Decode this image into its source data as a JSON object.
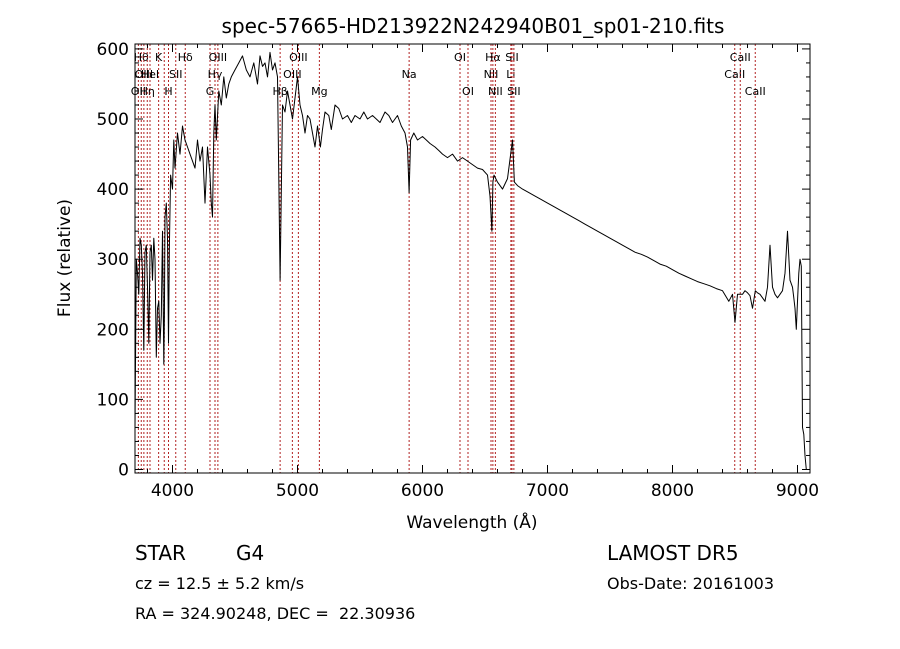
{
  "chart_data": {
    "type": "line",
    "title": "spec-57665-HD213922N242940B01_sp01-210.fits",
    "xlabel": "Wavelength (Å)",
    "ylabel": "Flux (relative)",
    "xlim": [
      3700,
      9100
    ],
    "ylim": [
      -5,
      607
    ],
    "x_ticks": [
      4000,
      5000,
      6000,
      7000,
      8000,
      9000
    ],
    "y_ticks": [
      0,
      100,
      200,
      300,
      400,
      500,
      600
    ],
    "grid": false,
    "legend": "none",
    "line_color": "#000000",
    "marker_color": "#b22222",
    "series": [
      {
        "x": [
          3700,
          3710,
          3720,
          3730,
          3740,
          3750,
          3760,
          3770,
          3780,
          3790,
          3800,
          3810,
          3820,
          3830,
          3840,
          3850,
          3860,
          3870,
          3880,
          3890,
          3900,
          3910,
          3920,
          3930,
          3935,
          3940,
          3950,
          3960,
          3968,
          3975,
          3985,
          4000,
          4010,
          4020,
          4040,
          4060,
          4080,
          4100,
          4120,
          4140,
          4160,
          4180,
          4200,
          4220,
          4240,
          4260,
          4280,
          4300,
          4310,
          4320,
          4330,
          4340,
          4350,
          4370,
          4390,
          4410,
          4430,
          4450,
          4470,
          4500,
          4530,
          4560,
          4590,
          4620,
          4650,
          4680,
          4700,
          4720,
          4740,
          4760,
          4780,
          4800,
          4820,
          4840,
          4861,
          4880,
          4900,
          4920,
          4940,
          4960,
          4980,
          5000,
          5020,
          5040,
          5060,
          5080,
          5100,
          5120,
          5140,
          5160,
          5172,
          5183,
          5200,
          5220,
          5250,
          5270,
          5300,
          5330,
          5360,
          5400,
          5430,
          5460,
          5500,
          5530,
          5560,
          5600,
          5630,
          5660,
          5700,
          5730,
          5760,
          5800,
          5830,
          5860,
          5880,
          5893,
          5905,
          5930,
          5960,
          6000,
          6030,
          6060,
          6100,
          6130,
          6160,
          6200,
          6240,
          6280,
          6320,
          6360,
          6400,
          6440,
          6480,
          6520,
          6540,
          6555,
          6563,
          6572,
          6600,
          6640,
          6680,
          6720,
          6735,
          6760,
          6800,
          6850,
          6900,
          6950,
          7000,
          7050,
          7100,
          7150,
          7200,
          7250,
          7300,
          7350,
          7400,
          7450,
          7500,
          7550,
          7600,
          7650,
          7700,
          7750,
          7800,
          7850,
          7900,
          7950,
          8000,
          8050,
          8100,
          8150,
          8200,
          8250,
          8300,
          8350,
          8400,
          8450,
          8480,
          8500,
          8520,
          8542,
          8560,
          8580,
          8600,
          8620,
          8640,
          8662,
          8680,
          8700,
          8720,
          8740,
          8760,
          8780,
          8800,
          8820,
          8840,
          8860,
          8880,
          8900,
          8920,
          8940,
          8960,
          8970,
          8980,
          8990,
          9000,
          9010,
          9020,
          9030,
          9040,
          9050,
          9060,
          9070
        ],
        "y": [
          60,
          300,
          280,
          250,
          330,
          320,
          280,
          170,
          310,
          320,
          260,
          180,
          310,
          320,
          270,
          330,
          300,
          160,
          230,
          240,
          180,
          220,
          340,
          150,
          220,
          360,
          380,
          330,
          180,
          320,
          420,
          400,
          470,
          430,
          480,
          450,
          490,
          470,
          460,
          450,
          440,
          430,
          470,
          440,
          460,
          380,
          460,
          420,
          380,
          360,
          480,
          520,
          470,
          540,
          520,
          560,
          530,
          550,
          560,
          570,
          580,
          590,
          570,
          560,
          580,
          550,
          590,
          575,
          580,
          560,
          595,
          570,
          580,
          560,
          270,
          520,
          510,
          540,
          520,
          500,
          530,
          560,
          520,
          505,
          480,
          505,
          500,
          480,
          460,
          490,
          475,
          460,
          485,
          510,
          505,
          485,
          520,
          515,
          500,
          505,
          495,
          505,
          500,
          510,
          500,
          505,
          500,
          495,
          510,
          505,
          495,
          505,
          490,
          480,
          460,
          395,
          470,
          480,
          470,
          475,
          470,
          465,
          460,
          455,
          450,
          445,
          450,
          440,
          445,
          440,
          435,
          430,
          428,
          420,
          390,
          340,
          410,
          420,
          410,
          400,
          415,
          470,
          410,
          405,
          400,
          395,
          390,
          385,
          380,
          375,
          370,
          365,
          360,
          355,
          350,
          345,
          340,
          335,
          330,
          325,
          320,
          315,
          310,
          307,
          303,
          298,
          293,
          290,
          285,
          280,
          276,
          272,
          268,
          265,
          262,
          258,
          255,
          240,
          250,
          210,
          250,
          250,
          250,
          255,
          252,
          248,
          230,
          255,
          252,
          250,
          245,
          240,
          260,
          320,
          260,
          250,
          245,
          250,
          255,
          280,
          340,
          270,
          260,
          245,
          230,
          200,
          240,
          280,
          300,
          290,
          60,
          50,
          20,
          0
        ]
      }
    ],
    "line_markers": [
      {
        "wavelength": 3727,
        "label": "OII",
        "row": 2
      },
      {
        "wavelength": 3750,
        "label": "Hθ",
        "row": 0
      },
      {
        "wavelength": 3771,
        "label": "OIII",
        "row": 1
      },
      {
        "wavelength": 3798,
        "label": "Hη",
        "row": 2
      },
      {
        "wavelength": 3820,
        "label": "HeI",
        "row": 1
      },
      {
        "wavelength": 3889,
        "label": "K",
        "row": 0
      },
      {
        "wavelength": 3934,
        "label": "",
        "row": 0
      },
      {
        "wavelength": 3968,
        "label": "H",
        "row": 2
      },
      {
        "wavelength": 4026,
        "label": "SII",
        "row": 1
      },
      {
        "wavelength": 4102,
        "label": "Hδ",
        "row": 0
      },
      {
        "wavelength": 4300,
        "label": "G",
        "row": 2
      },
      {
        "wavelength": 4340,
        "label": "Hγ",
        "row": 1
      },
      {
        "wavelength": 4363,
        "label": "OIII",
        "row": 0
      },
      {
        "wavelength": 4861,
        "label": "Hβ",
        "row": 2
      },
      {
        "wavelength": 4959,
        "label": "OIII",
        "row": 1
      },
      {
        "wavelength": 5007,
        "label": "OIII",
        "row": 0
      },
      {
        "wavelength": 5175,
        "label": "Mg",
        "row": 2
      },
      {
        "wavelength": 5893,
        "label": "Na",
        "row": 1
      },
      {
        "wavelength": 6300,
        "label": "OI",
        "row": 0
      },
      {
        "wavelength": 6364,
        "label": "OI",
        "row": 2
      },
      {
        "wavelength": 6548,
        "label": "NII",
        "row": 1
      },
      {
        "wavelength": 6563,
        "label": "Hα",
        "row": 0
      },
      {
        "wavelength": 6583,
        "label": "NII",
        "row": 2
      },
      {
        "wavelength": 6707,
        "label": "Li",
        "row": 1
      },
      {
        "wavelength": 6716,
        "label": "SII",
        "row": 0
      },
      {
        "wavelength": 6731,
        "label": "SII",
        "row": 2
      },
      {
        "wavelength": 8498,
        "label": "CaII",
        "row": 1
      },
      {
        "wavelength": 8542,
        "label": "CaII",
        "row": 0
      },
      {
        "wavelength": 8662,
        "label": "CaII",
        "row": 2
      }
    ]
  },
  "footer": {
    "object_class": "STAR",
    "subclass": "G4",
    "survey": "LAMOST DR5",
    "velocity": "cz = 12.5 ± 5.2 km/s",
    "obs_date": "Obs-Date: 20161003",
    "coords": "RA = 324.90248, DEC =  22.30936"
  }
}
